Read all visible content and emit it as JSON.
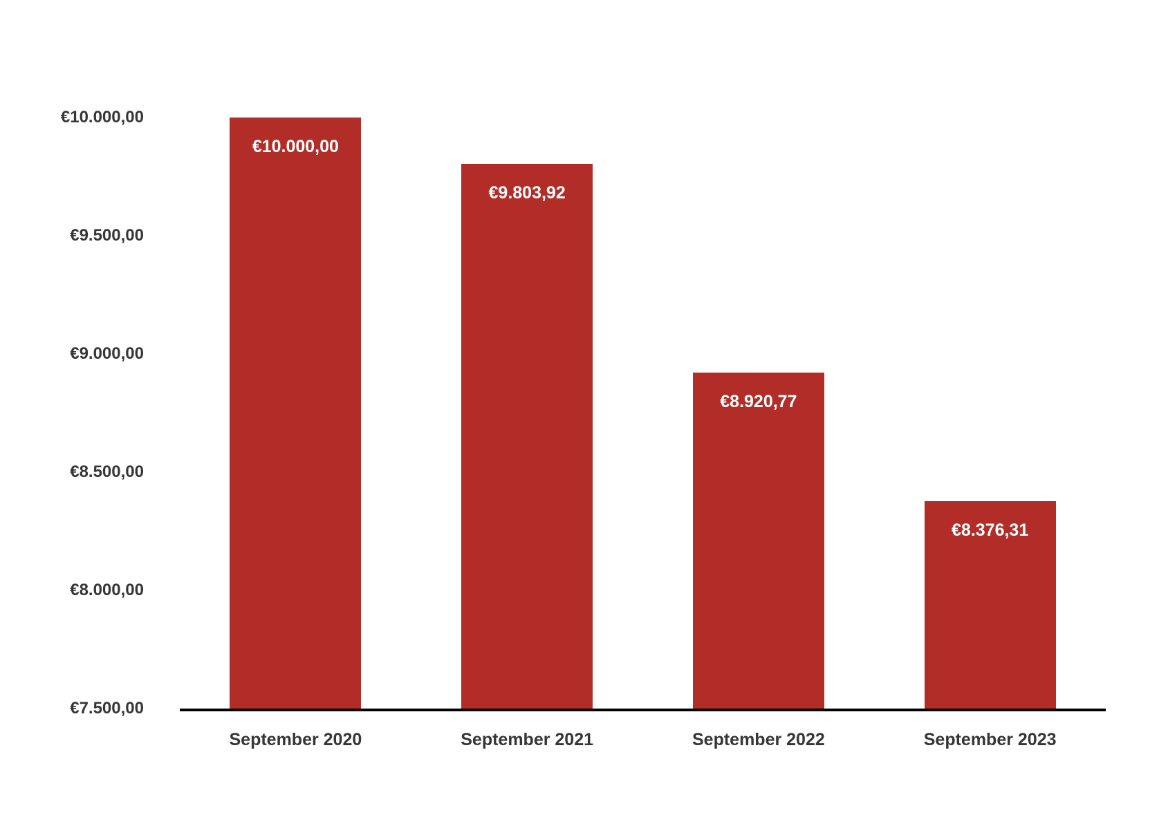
{
  "chart_data": {
    "type": "bar",
    "title": "",
    "categories": [
      "September 2020",
      "September 2021",
      "September 2022",
      "September 2023"
    ],
    "values": [
      10000,
      9803.92,
      8920.77,
      8376.31
    ],
    "bar_value_labels": [
      "€10.000,00",
      "€9.803,92",
      "€8.920,77",
      "€8.376,31"
    ],
    "y_axis": {
      "tick_labels": [
        "€10.000,00",
        "€9.500,00",
        "€9.000,00",
        "€8.500,00",
        "€8.000,00",
        "€7.500,00"
      ],
      "tick_values": [
        10000,
        9500,
        9000,
        8500,
        8000,
        7500
      ],
      "min": 7500,
      "max": 10000
    },
    "xlabel": "",
    "ylabel": "",
    "grid": false,
    "legend": false,
    "bar_color": "#B22D28",
    "axis_line_color": "#000000",
    "axis_text_color": "#363636",
    "bar_label_text_color": "#FFFFFF",
    "background_color": "#FFFFFF"
  }
}
